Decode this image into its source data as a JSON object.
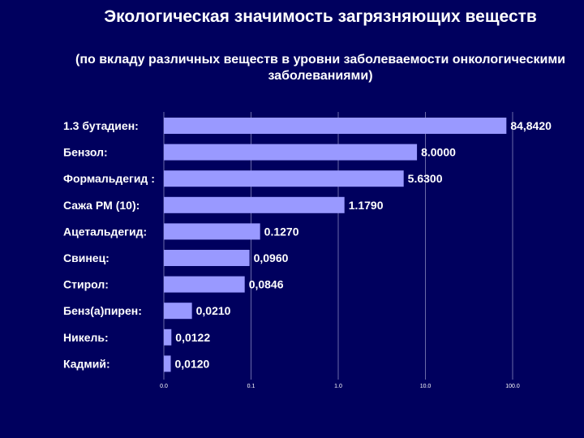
{
  "chart_data": {
    "type": "bar",
    "orientation": "horizontal",
    "title": "Экологическая значимость загрязняющих веществ",
    "subtitle": "(по вкладу различных веществ в уровни заболеваемости онкологическими заболеваниями)",
    "categories": [
      "1.3 бутадиен:",
      "Бензол:",
      "Формальдегид :",
      "Сажа PM (10):",
      "Ацетальдегид:",
      "Свинец:",
      "Стирол:",
      "Бенз(а)пирен:",
      "Никель:",
      "Кадмий:"
    ],
    "values": [
      84.842,
      8.0,
      5.63,
      1.179,
      0.127,
      0.096,
      0.0846,
      0.021,
      0.0122,
      0.012
    ],
    "value_labels": [
      "84,8420",
      "8.0000",
      "5.6300",
      "1.1790",
      "0.1270",
      "0,0960",
      "0,0846",
      "0,0210",
      "0,0122",
      "0,0120"
    ],
    "x_scale": "log",
    "xlim": [
      0.01,
      100
    ],
    "x_ticks": [
      0.01,
      0.1,
      1,
      10,
      100
    ],
    "x_tick_labels": [
      "0.0",
      "0.1",
      "1.0",
      "10.0",
      "100.0"
    ],
    "grid": "vertical",
    "bar_color": "#9999ff",
    "background_color": "#00005e",
    "grid_color": "#6a6aa8"
  }
}
